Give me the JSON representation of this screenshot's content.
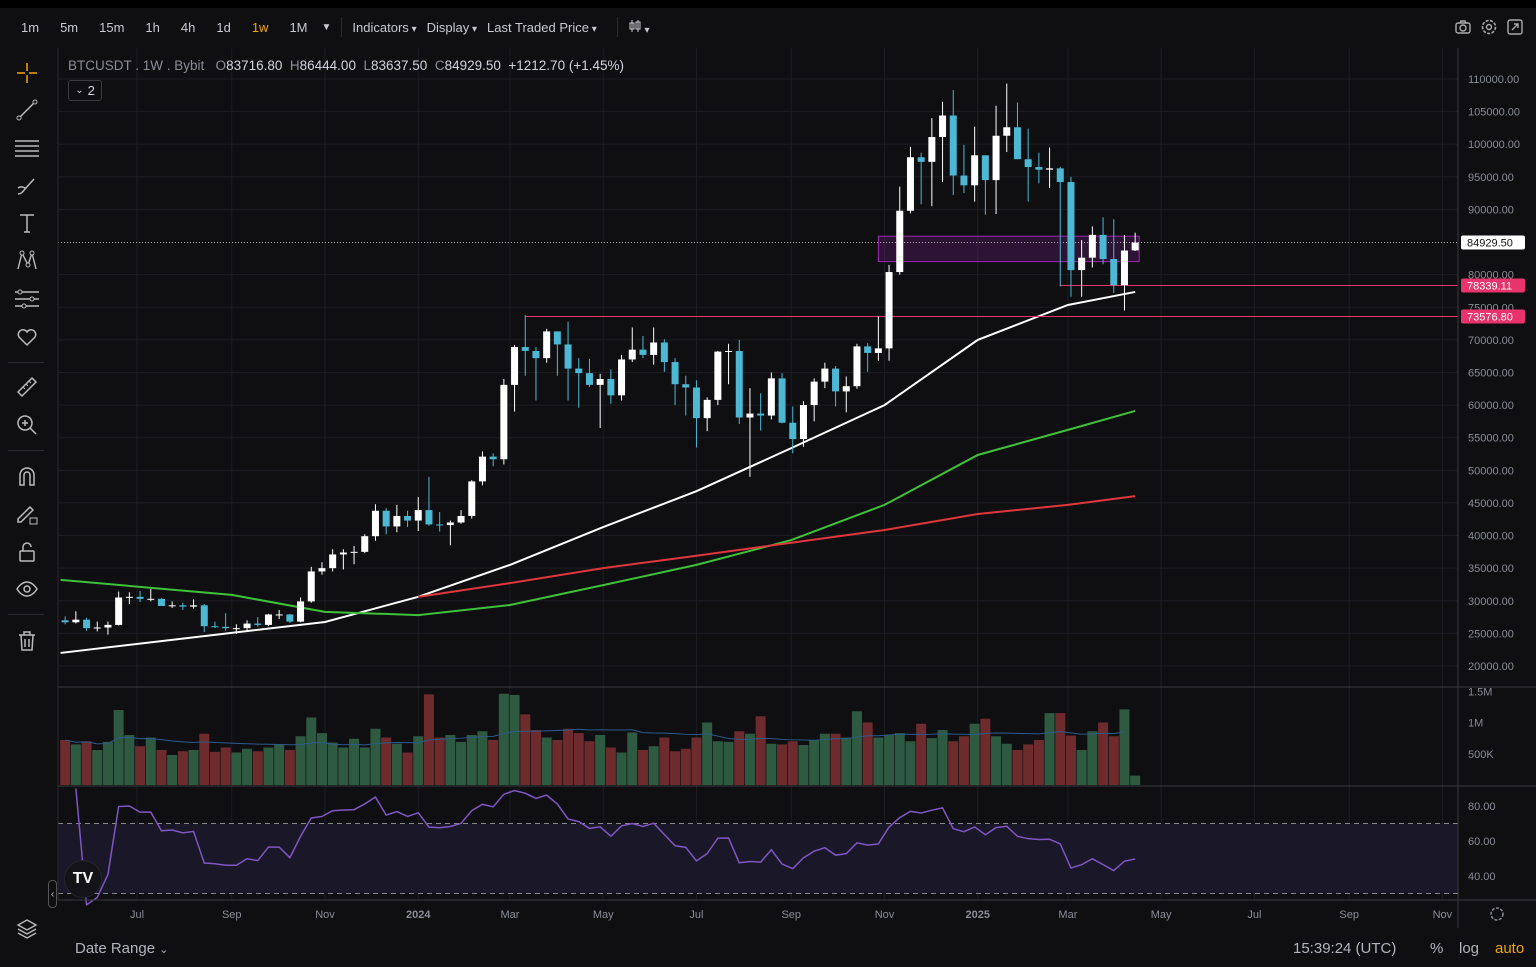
{
  "toolbar": {
    "timeframes": [
      "1m",
      "5m",
      "15m",
      "1h",
      "4h",
      "1d",
      "1w",
      "1M"
    ],
    "active_timeframe": "1w",
    "indicators": "Indicators",
    "display": "Display",
    "price_source": "Last Traded Price",
    "right_icons": [
      "camera-icon",
      "settings-icon",
      "fullscreen-icon"
    ]
  },
  "legend": {
    "symbol": "BTCUSDT . 1W . Bybit",
    "o_label": "O",
    "open": "83716.80",
    "h_label": "H",
    "high": "86444.00",
    "l_label": "L",
    "low": "83637.50",
    "c_label": "C",
    "close": "84929.50",
    "change": "+1212.70 (+1.45%)",
    "collapsed_count": "2"
  },
  "left_tools": [
    "crosshair-icon",
    "trend-line-icon",
    "horizontal-lines-icon",
    "brush-icon",
    "text-icon",
    "pattern-icon",
    "fib-icon",
    "heart-icon",
    "ruler-icon",
    "zoom-in-icon",
    "magnet-icon",
    "lock-drawing-icon",
    "lock-icon",
    "eye-icon",
    "trash-icon",
    "layers-icon"
  ],
  "bottom": {
    "date_range": "Date Range",
    "time": "15:39:24 (UTC)",
    "percent": "%",
    "log": "log",
    "auto": "auto"
  },
  "colors": {
    "up": "#ffffff",
    "down": "#4cb8d4",
    "vol_up": "#2e5a42",
    "vol_down": "#6e2b2e",
    "ma_white": "#ffffff",
    "ma_green": "#3fc23a",
    "ma_red": "#e0373c",
    "rsi": "#7e57c2",
    "zone": "#9c27b0",
    "level": "#e8336c",
    "accent": "#f0a500"
  },
  "chart_data": {
    "type": "candlestick",
    "price_axis": {
      "ticks": [
        "110000.00",
        "105000.00",
        "100000.00",
        "95000.00",
        "90000.00",
        "80000.00",
        "75000.00",
        "70000.00",
        "65000.00",
        "60000.00",
        "55000.00",
        "50000.00",
        "45000.00",
        "40000.00",
        "35000.00",
        "30000.00",
        "25000.00",
        "20000.00"
      ],
      "range": [
        18000,
        113000
      ]
    },
    "time_axis": {
      "ticks": [
        [
          "2023-07-01",
          "Jul"
        ],
        [
          "2023-09-01",
          "Sep"
        ],
        [
          "2023-11-01",
          "Nov"
        ],
        [
          "2024-01-01",
          "2024"
        ],
        [
          "2024-03-01",
          "Mar"
        ],
        [
          "2024-05-01",
          "May"
        ],
        [
          "2024-07-01",
          "Jul"
        ],
        [
          "2024-09-01",
          "Sep"
        ],
        [
          "2024-11-01",
          "Nov"
        ],
        [
          "2025-01-01",
          "2025"
        ],
        [
          "2025-03-01",
          "Mar"
        ],
        [
          "2025-05-01",
          "May"
        ],
        [
          "2025-07-01",
          "Jul"
        ],
        [
          "2025-09-01",
          "Sep"
        ],
        [
          "2025-11-01",
          "Nov"
        ]
      ]
    },
    "candles": [
      [
        "2023-05-15",
        27000,
        27600,
        26400,
        26700
      ],
      [
        "2023-05-22",
        26700,
        28400,
        26500,
        27100
      ],
      [
        "2023-05-29",
        27100,
        27400,
        25400,
        25800
      ],
      [
        "2023-06-05",
        25800,
        26800,
        25300,
        25900
      ],
      [
        "2023-06-12",
        25900,
        26800,
        24800,
        26300
      ],
      [
        "2023-06-19",
        26300,
        31400,
        26200,
        30500
      ],
      [
        "2023-06-26",
        30500,
        31300,
        29500,
        30600
      ],
      [
        "2023-07-03",
        30600,
        31500,
        29800,
        30300
      ],
      [
        "2023-07-10",
        30300,
        31800,
        29900,
        30300
      ],
      [
        "2023-07-17",
        30300,
        30400,
        29600,
        29200
      ],
      [
        "2023-07-24",
        29200,
        29900,
        28900,
        29300
      ],
      [
        "2023-07-31",
        29300,
        29700,
        28600,
        29100
      ],
      [
        "2023-08-07",
        29100,
        30200,
        28800,
        29300
      ],
      [
        "2023-08-14",
        29300,
        29500,
        25200,
        26100
      ],
      [
        "2023-08-21",
        26100,
        26800,
        25800,
        26000
      ],
      [
        "2023-08-28",
        26000,
        28100,
        25400,
        25800
      ],
      [
        "2023-09-04",
        25800,
        26400,
        24900,
        25800
      ],
      [
        "2023-09-11",
        25800,
        27000,
        25200,
        26500
      ],
      [
        "2023-09-18",
        26500,
        27500,
        26000,
        26300
      ],
      [
        "2023-09-25",
        26300,
        28000,
        26100,
        27900
      ],
      [
        "2023-10-02",
        27900,
        28600,
        27200,
        27900
      ],
      [
        "2023-10-09",
        27900,
        28000,
        26600,
        26800
      ],
      [
        "2023-10-16",
        26800,
        30500,
        26700,
        29900
      ],
      [
        "2023-10-23",
        29900,
        35200,
        29700,
        34500
      ],
      [
        "2023-10-30",
        34500,
        35900,
        34000,
        35000
      ],
      [
        "2023-11-06",
        35000,
        37900,
        34500,
        37100
      ],
      [
        "2023-11-13",
        37100,
        37900,
        34800,
        37400
      ],
      [
        "2023-11-20",
        37400,
        38400,
        35600,
        37500
      ],
      [
        "2023-11-27",
        37500,
        40200,
        37300,
        39900
      ],
      [
        "2023-12-04",
        39900,
        44800,
        39200,
        43800
      ],
      [
        "2023-12-11",
        43800,
        44200,
        40200,
        41400
      ],
      [
        "2023-12-18",
        41400,
        44700,
        40500,
        43000
      ],
      [
        "2023-12-25",
        43000,
        43800,
        41300,
        42300
      ],
      [
        "2024-01-01",
        42300,
        45900,
        40700,
        43900
      ],
      [
        "2024-01-08",
        43900,
        49000,
        41500,
        41700
      ],
      [
        "2024-01-15",
        41700,
        43600,
        40600,
        41600
      ],
      [
        "2024-01-22",
        41600,
        42300,
        38500,
        42000
      ],
      [
        "2024-01-29",
        42000,
        43900,
        41800,
        43000
      ],
      [
        "2024-02-05",
        43000,
        48500,
        42600,
        48300
      ],
      [
        "2024-02-12",
        48300,
        52900,
        47700,
        52100
      ],
      [
        "2024-02-19",
        52100,
        52600,
        50600,
        51700
      ],
      [
        "2024-02-26",
        51700,
        64000,
        50900,
        63100
      ],
      [
        "2024-03-04",
        63100,
        69200,
        59000,
        68900
      ],
      [
        "2024-03-11",
        68900,
        73800,
        64500,
        68300
      ],
      [
        "2024-03-18",
        68300,
        68900,
        60700,
        67200
      ],
      [
        "2024-03-25",
        67200,
        71700,
        66500,
        71300
      ],
      [
        "2024-04-01",
        71300,
        71300,
        64500,
        69300
      ],
      [
        "2024-04-08",
        69300,
        72800,
        60700,
        65600
      ],
      [
        "2024-04-15",
        65600,
        67200,
        59600,
        64900
      ],
      [
        "2024-04-22",
        64900,
        67100,
        62800,
        63100
      ],
      [
        "2024-04-29",
        63100,
        64800,
        56500,
        64000
      ],
      [
        "2024-05-06",
        64000,
        65500,
        60200,
        61500
      ],
      [
        "2024-05-13",
        61500,
        67700,
        60700,
        67000
      ],
      [
        "2024-05-20",
        67000,
        71900,
        66600,
        68500
      ],
      [
        "2024-05-27",
        68500,
        70600,
        67200,
        67700
      ],
      [
        "2024-06-03",
        67700,
        71900,
        66200,
        69600
      ],
      [
        "2024-06-10",
        69600,
        70100,
        65100,
        66600
      ],
      [
        "2024-06-17",
        66600,
        67200,
        60000,
        63200
      ],
      [
        "2024-06-24",
        63200,
        64500,
        58400,
        62700
      ],
      [
        "2024-07-01",
        62700,
        63800,
        53500,
        58000
      ],
      [
        "2024-07-08",
        58000,
        61200,
        56000,
        60800
      ],
      [
        "2024-07-15",
        60800,
        68300,
        60000,
        68200
      ],
      [
        "2024-07-22",
        68200,
        69400,
        63200,
        68300
      ],
      [
        "2024-07-29",
        68300,
        70000,
        57100,
        58100
      ],
      [
        "2024-08-05",
        58100,
        62600,
        49000,
        58700
      ],
      [
        "2024-08-12",
        58700,
        61800,
        56100,
        58400
      ],
      [
        "2024-08-19",
        58400,
        65000,
        57800,
        64100
      ],
      [
        "2024-08-26",
        64100,
        64900,
        57200,
        57300
      ],
      [
        "2024-09-02",
        57300,
        59800,
        52600,
        54800
      ],
      [
        "2024-09-09",
        54800,
        60600,
        53600,
        60000
      ],
      [
        "2024-09-16",
        60000,
        64100,
        57500,
        63600
      ],
      [
        "2024-09-23",
        63600,
        66500,
        62600,
        65600
      ],
      [
        "2024-09-30",
        65600,
        66000,
        59800,
        62100
      ],
      [
        "2024-10-07",
        62100,
        64400,
        58900,
        62900
      ],
      [
        "2024-10-14",
        62900,
        69400,
        62500,
        69000
      ],
      [
        "2024-10-21",
        69000,
        69500,
        65100,
        68000
      ],
      [
        "2024-10-28",
        68000,
        73600,
        66800,
        68700
      ],
      [
        "2024-11-04",
        68700,
        81500,
        66800,
        80400
      ],
      [
        "2024-11-11",
        80400,
        93500,
        80000,
        89800
      ],
      [
        "2024-11-18",
        89800,
        99600,
        89400,
        98000
      ],
      [
        "2024-11-25",
        98000,
        98700,
        90800,
        97300
      ],
      [
        "2024-12-02",
        97300,
        104000,
        90500,
        101100
      ],
      [
        "2024-12-09",
        101100,
        106500,
        94200,
        104400
      ],
      [
        "2024-12-16",
        104400,
        108300,
        92200,
        95200
      ],
      [
        "2024-12-23",
        95200,
        99900,
        92500,
        93700
      ],
      [
        "2024-12-30",
        93700,
        102700,
        91200,
        98300
      ],
      [
        "2025-01-06",
        98300,
        98300,
        89200,
        94500
      ],
      [
        "2025-01-13",
        94500,
        105900,
        89300,
        101300
      ],
      [
        "2025-01-20",
        101300,
        109300,
        98800,
        102600
      ],
      [
        "2025-01-27",
        102600,
        106400,
        97800,
        97700
      ],
      [
        "2025-02-03",
        97700,
        102400,
        91200,
        96500
      ],
      [
        "2025-02-10",
        96500,
        98700,
        94000,
        96100
      ],
      [
        "2025-02-17",
        96100,
        99500,
        93300,
        96300
      ],
      [
        "2025-02-24",
        96300,
        96500,
        78200,
        94200
      ],
      [
        "2025-03-03",
        94200,
        95000,
        76600,
        80700
      ],
      [
        "2025-03-10",
        80700,
        85300,
        76600,
        82600
      ],
      [
        "2025-03-17",
        82600,
        87400,
        81100,
        86100
      ],
      [
        "2025-03-24",
        86100,
        88800,
        81600,
        82400
      ],
      [
        "2025-03-31",
        82400,
        88500,
        77200,
        78400
      ],
      [
        "2025-04-07",
        78400,
        86100,
        74500,
        83700
      ],
      [
        "2025-04-14",
        83716.8,
        86444,
        83637.5,
        84929.5
      ]
    ],
    "moving_averages": [
      {
        "color_key": "ma_white",
        "points": [
          [
            "2023-05-12",
            22000
          ],
          [
            "2023-11-01",
            26750
          ],
          [
            "2024-01-01",
            30600
          ],
          [
            "2024-03-01",
            35500
          ],
          [
            "2024-05-01",
            41300
          ],
          [
            "2024-07-01",
            46800
          ],
          [
            "2024-09-01",
            53400
          ],
          [
            "2024-11-01",
            60000
          ],
          [
            "2025-01-01",
            70000
          ],
          [
            "2025-03-01",
            75350
          ],
          [
            "2025-04-14",
            77350
          ]
        ]
      },
      {
        "color_key": "ma_green",
        "points": [
          [
            "2023-05-12",
            33200
          ],
          [
            "2023-09-01",
            30900
          ],
          [
            "2023-11-01",
            28300
          ],
          [
            "2024-01-01",
            27800
          ],
          [
            "2024-03-01",
            29350
          ],
          [
            "2024-05-01",
            32400
          ],
          [
            "2024-07-01",
            35500
          ],
          [
            "2024-09-01",
            39300
          ],
          [
            "2024-11-01",
            44700
          ],
          [
            "2025-01-01",
            52350
          ],
          [
            "2025-03-01",
            56200
          ],
          [
            "2025-04-14",
            59100
          ]
        ]
      },
      {
        "color_key": "ma_red",
        "points": [
          [
            "2024-01-01",
            30600
          ],
          [
            "2024-03-01",
            32700
          ],
          [
            "2024-05-01",
            35000
          ],
          [
            "2024-07-01",
            36900
          ],
          [
            "2024-09-01",
            38900
          ],
          [
            "2024-11-01",
            40850
          ],
          [
            "2025-01-01",
            43300
          ],
          [
            "2025-03-01",
            44700
          ],
          [
            "2025-04-14",
            46050
          ]
        ]
      }
    ],
    "zone": {
      "from": "2024-10-28",
      "to": "2025-04-14",
      "top": 85900,
      "bottom": 82000
    },
    "levels": [
      {
        "price": 78339.11,
        "label": "78339.11",
        "from": "2025-02-24"
      },
      {
        "price": 73576.8,
        "label": "73576.80",
        "from": "2024-03-11"
      }
    ],
    "last_price": {
      "price": 84929.5,
      "label": "84929.50"
    },
    "volume": {
      "axis_ticks": [
        "1.5M",
        "1M",
        "500K"
      ],
      "values_k": [
        720,
        650,
        700,
        560,
        690,
        1200,
        800,
        620,
        760,
        560,
        480,
        540,
        560,
        820,
        530,
        600,
        520,
        580,
        540,
        600,
        650,
        560,
        780,
        1080,
        830,
        680,
        600,
        740,
        600,
        900,
        760,
        660,
        520,
        780,
        1450,
        760,
        800,
        690,
        800,
        860,
        720,
        1460,
        1440,
        1130,
        880,
        760,
        720,
        900,
        830,
        700,
        800,
        600,
        520,
        840,
        560,
        620,
        760,
        540,
        580,
        760,
        1000,
        700,
        690,
        860,
        820,
        1100,
        660,
        650,
        700,
        640,
        720,
        820,
        820,
        760,
        1180,
        1000,
        760,
        800,
        830,
        700,
        980,
        750,
        880,
        700,
        780,
        980,
        1060,
        780,
        660,
        560,
        650,
        720,
        1150,
        1150,
        790,
        560,
        860,
        1000,
        780,
        1210,
        150
      ]
    },
    "rsi": {
      "axis_ticks": [
        "80.00",
        "60.00",
        "40.00"
      ],
      "upper": 70,
      "lower": 30
    }
  }
}
